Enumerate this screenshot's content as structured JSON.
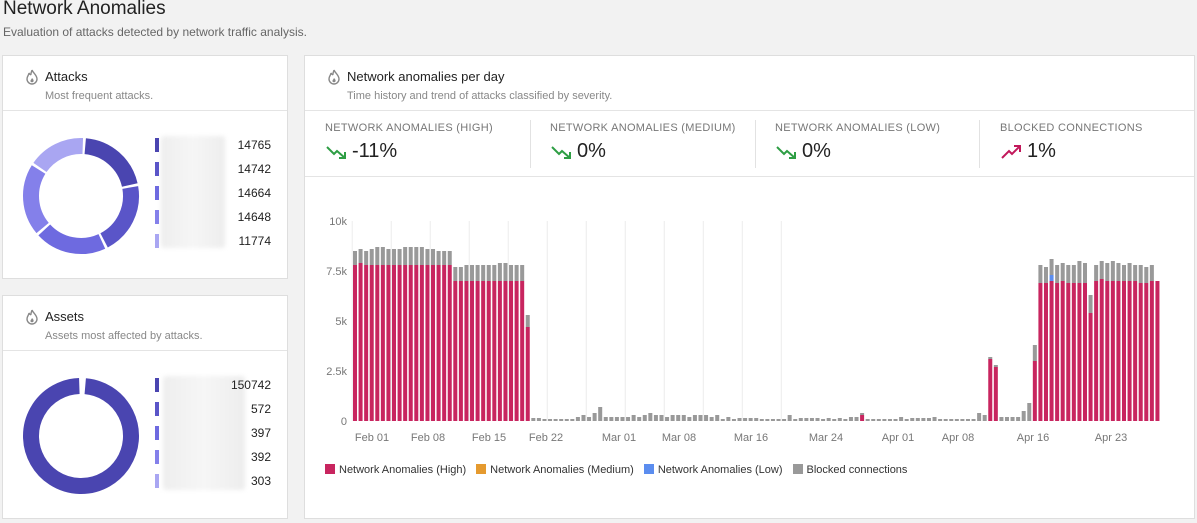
{
  "page": {
    "title": "Network Anomalies",
    "subtitle": "Evaluation of attacks detected by network traffic analysis."
  },
  "attacks_card": {
    "title": "Attacks",
    "subtitle": "Most frequent attacks.",
    "icon": "flame-icon",
    "items": [
      {
        "value": "14765",
        "color": "#4a45b0"
      },
      {
        "value": "14742",
        "color": "#5a55c8"
      },
      {
        "value": "14664",
        "color": "#6e6ae0"
      },
      {
        "value": "14648",
        "color": "#8480ea"
      },
      {
        "value": "11774",
        "color": "#a9a6f2"
      }
    ]
  },
  "assets_card": {
    "title": "Assets",
    "subtitle": "Assets most affected by attacks.",
    "icon": "flame-icon",
    "items": [
      {
        "value": "150742",
        "color": "#4a45b0"
      },
      {
        "value": "572",
        "color": "#5a55c8"
      },
      {
        "value": "397",
        "color": "#6e6ae0"
      },
      {
        "value": "392",
        "color": "#8480ea"
      },
      {
        "value": "303",
        "color": "#a9a6f2"
      }
    ]
  },
  "chart_card": {
    "title": "Network anomalies per day",
    "subtitle": "Time history and trend of attacks classified by severity.",
    "icon": "flame-icon",
    "kpis": [
      {
        "label": "NETWORK ANOMALIES (HIGH)",
        "value": "-11%",
        "trend": "down",
        "color": "#2e9e44"
      },
      {
        "label": "NETWORK ANOMALIES (MEDIUM)",
        "value": "0%",
        "trend": "down",
        "color": "#2e9e44"
      },
      {
        "label": "NETWORK ANOMALIES (LOW)",
        "value": "0%",
        "trend": "down",
        "color": "#2e9e44"
      },
      {
        "label": "BLOCKED CONNECTIONS",
        "value": "1%",
        "trend": "up",
        "color": "#c2185b"
      }
    ]
  },
  "chart_data": {
    "type": "bar",
    "stacked": true,
    "ylim": [
      0,
      10000
    ],
    "yticks": [
      0,
      2500,
      5000,
      7500,
      10000
    ],
    "ytick_labels": [
      "0",
      "2.5k",
      "5k",
      "7.5k",
      "10k"
    ],
    "xtick_labels": [
      "Feb 01",
      "Feb 08",
      "Feb 15",
      "Feb 22",
      "Mar 01",
      "Mar 08",
      "Mar 16",
      "Mar 24",
      "Apr 01",
      "Apr 08",
      "Apr 16",
      "Apr 23"
    ],
    "grid": true,
    "legend_position": "bottom",
    "series": [
      {
        "name": "Network Anomalies (High)",
        "color": "#c8255f",
        "values": [
          7800,
          7900,
          7800,
          7800,
          7800,
          7800,
          7800,
          7800,
          7800,
          7800,
          7800,
          7800,
          7800,
          7800,
          7800,
          7800,
          7800,
          7800,
          7000,
          7000,
          7000,
          7000,
          7000,
          7000,
          7000,
          7000,
          7000,
          7000,
          7000,
          7000,
          7000,
          4700,
          0,
          0,
          0,
          0,
          0,
          0,
          0,
          0,
          0,
          0,
          0,
          0,
          0,
          0,
          0,
          0,
          0,
          0,
          0,
          0,
          0,
          0,
          0,
          0,
          0,
          0,
          0,
          0,
          0,
          0,
          0,
          0,
          0,
          0,
          0,
          0,
          0,
          0,
          0,
          0,
          0,
          0,
          0,
          0,
          0,
          0,
          0,
          0,
          0,
          0,
          0,
          0,
          0,
          0,
          0,
          0,
          0,
          0,
          0,
          300,
          0,
          0,
          0,
          0,
          0,
          0,
          0,
          0,
          0,
          0,
          0,
          0,
          0,
          0,
          0,
          0,
          0,
          0,
          0,
          0,
          0,
          0,
          3100,
          2700,
          0,
          0,
          0,
          0,
          0,
          0,
          3000,
          6900,
          6900,
          7000,
          6900,
          7000,
          6900,
          6900,
          6900,
          6900,
          5400,
          7000,
          7100,
          7000,
          7000,
          7000,
          7000,
          7000,
          7000,
          6900,
          6900,
          7000,
          7000
        ]
      },
      {
        "name": "Network Anomalies (Medium)",
        "color": "#e59a2f",
        "values": [
          0,
          0,
          0,
          0,
          0,
          0,
          0,
          0,
          0,
          0,
          0,
          0,
          0,
          0,
          0,
          0,
          0,
          0,
          0,
          0,
          0,
          0,
          0,
          0,
          0,
          0,
          0,
          0,
          0,
          0,
          0,
          0,
          0,
          0,
          0,
          0,
          0,
          0,
          0,
          0,
          0,
          0,
          0,
          0,
          0,
          0,
          0,
          0,
          0,
          0,
          0,
          0,
          0,
          0,
          0,
          0,
          0,
          0,
          0,
          0,
          0,
          0,
          0,
          0,
          0,
          0,
          0,
          0,
          0,
          0,
          0,
          0,
          0,
          0,
          0,
          0,
          0,
          0,
          0,
          0,
          0,
          0,
          0,
          0,
          0,
          0,
          0,
          0,
          0,
          0,
          0,
          0,
          0,
          0,
          0,
          0,
          0,
          0,
          0,
          0,
          0,
          0,
          0,
          0,
          0,
          0,
          0,
          0,
          0,
          0,
          0,
          0,
          0,
          0,
          0,
          0,
          0,
          0,
          0,
          0,
          0,
          0,
          0,
          0,
          0,
          0,
          0,
          0,
          0,
          0,
          0,
          0,
          0,
          0,
          0,
          0,
          0,
          0,
          0,
          0,
          0,
          0,
          0,
          0,
          0,
          0,
          0,
          0,
          0,
          0,
          0
        ]
      },
      {
        "name": "Network Anomalies (Low)",
        "color": "#5b8def",
        "values": [
          0,
          0,
          0,
          0,
          0,
          0,
          0,
          0,
          0,
          0,
          0,
          0,
          0,
          0,
          0,
          0,
          0,
          0,
          0,
          0,
          0,
          0,
          0,
          0,
          0,
          0,
          0,
          0,
          0,
          0,
          0,
          0,
          0,
          0,
          0,
          0,
          0,
          0,
          0,
          0,
          0,
          0,
          0,
          0,
          0,
          0,
          0,
          0,
          0,
          0,
          0,
          0,
          0,
          0,
          0,
          0,
          0,
          0,
          0,
          0,
          0,
          0,
          0,
          0,
          0,
          0,
          0,
          0,
          0,
          0,
          0,
          0,
          0,
          0,
          0,
          0,
          0,
          0,
          0,
          0,
          0,
          0,
          0,
          0,
          0,
          0,
          0,
          0,
          0,
          0,
          0,
          0,
          0,
          0,
          0,
          0,
          0,
          0,
          0,
          0,
          0,
          0,
          0,
          0,
          0,
          0,
          0,
          0,
          0,
          0,
          0,
          0,
          0,
          0,
          0,
          0,
          0,
          0,
          0,
          0,
          0,
          0,
          0,
          0,
          0,
          300,
          0,
          0,
          0,
          0,
          0,
          0,
          0,
          0,
          0,
          0,
          0,
          0,
          0,
          0,
          0,
          0,
          0,
          0,
          0,
          0,
          0,
          0,
          0,
          0,
          0
        ]
      },
      {
        "name": "Blocked connections",
        "color": "#999999",
        "values": [
          700,
          700,
          700,
          800,
          900,
          900,
          800,
          800,
          800,
          900,
          900,
          900,
          900,
          800,
          800,
          700,
          700,
          700,
          700,
          700,
          800,
          800,
          800,
          800,
          800,
          800,
          900,
          900,
          800,
          800,
          800,
          600,
          150,
          150,
          100,
          100,
          100,
          100,
          100,
          100,
          200,
          300,
          200,
          400,
          700,
          200,
          200,
          200,
          200,
          200,
          300,
          200,
          300,
          400,
          300,
          300,
          200,
          300,
          300,
          300,
          200,
          300,
          300,
          300,
          200,
          300,
          100,
          200,
          100,
          150,
          150,
          150,
          150,
          100,
          100,
          100,
          100,
          100,
          300,
          100,
          150,
          150,
          150,
          150,
          100,
          150,
          100,
          150,
          100,
          200,
          200,
          100,
          100,
          100,
          100,
          100,
          100,
          100,
          200,
          100,
          150,
          150,
          150,
          150,
          200,
          100,
          100,
          100,
          100,
          100,
          100,
          100,
          400,
          300,
          100,
          100,
          200,
          200,
          200,
          200,
          500,
          900,
          800,
          900,
          800,
          800,
          900,
          900,
          900,
          900,
          1100,
          1000,
          900,
          800,
          900,
          900,
          1000,
          900,
          800,
          900,
          800,
          900,
          800,
          800
        ]
      }
    ]
  }
}
